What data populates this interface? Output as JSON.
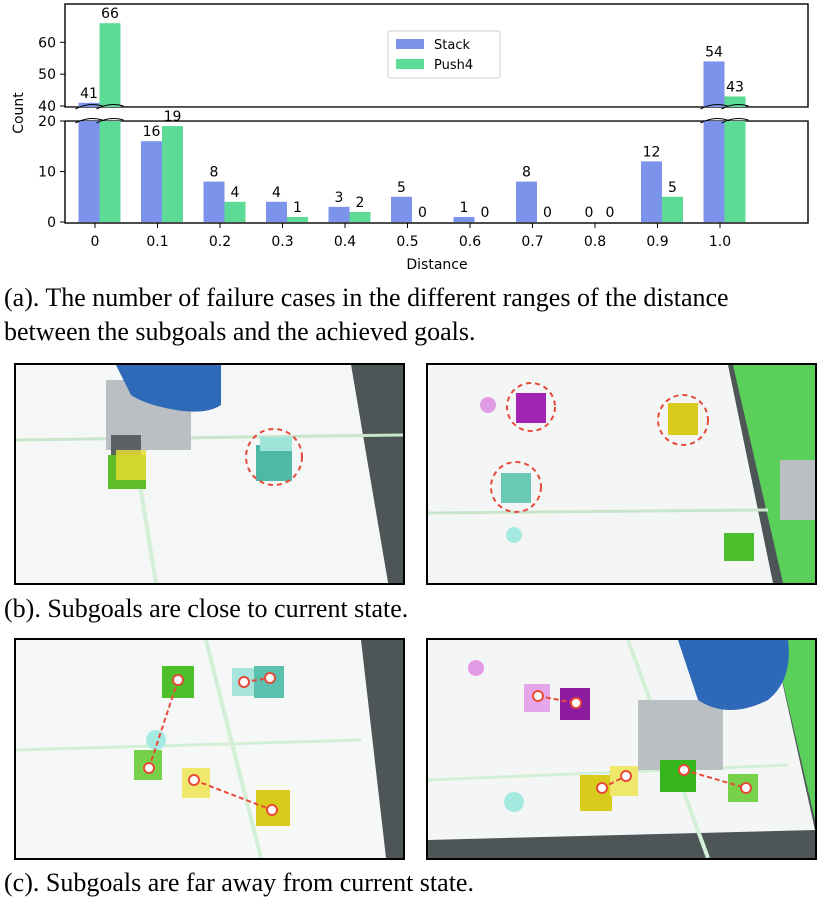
{
  "chart_data": {
    "type": "bar",
    "broken_axis": true,
    "categories": [
      "0",
      "0.1",
      "0.2",
      "0.3",
      "0.4",
      "0.5",
      "0.6",
      "0.7",
      "0.8",
      "0.9",
      "1.0"
    ],
    "series": [
      {
        "name": "Stack",
        "color": "#7b93ea",
        "values": [
          41,
          16,
          8,
          4,
          3,
          5,
          1,
          8,
          0,
          12,
          54
        ]
      },
      {
        "name": "Push4",
        "color": "#5ddb96",
        "values": [
          66,
          19,
          4,
          1,
          2,
          0,
          0,
          0,
          0,
          5,
          43
        ]
      }
    ],
    "xlabel": "Distance",
    "ylabel": "Count",
    "lower_ylim": [
      0,
      20
    ],
    "upper_ylim": [
      40,
      67
    ],
    "lower_yticks": [
      "0",
      "10",
      "20"
    ],
    "upper_yticks": [
      "40",
      "50",
      "60"
    ],
    "legend_position": "top-center"
  },
  "captions": {
    "a_line1": "(a). The number of failure cases in the different ranges of the distance",
    "a_line2": "between the subgoals and the achieved goals.",
    "b": "(b). Subgoals are close to current state.",
    "c": "(c). Subgoals are far away from current state."
  },
  "colors": {
    "stack": "#7b93ea",
    "push4": "#5ddb96",
    "table": "#f4f6f6",
    "robot": "#2e68b8",
    "subgoal_marker": "#e84a3a"
  }
}
